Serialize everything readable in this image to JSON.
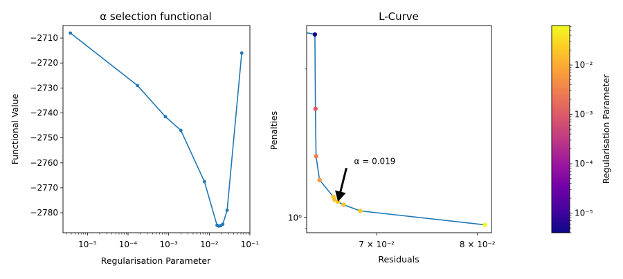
{
  "chart_data": [
    {
      "type": "line",
      "title": "α selection functional",
      "xlabel": "Regularisation Parameter",
      "ylabel": "Functional Value",
      "xscale": "log",
      "xlim": [
        2.5e-06,
        0.1
      ],
      "ylim": [
        -2788,
        -2705
      ],
      "x_ticks": [
        1e-05,
        0.0001,
        0.001,
        0.01,
        0.1
      ],
      "x_tick_labels": [
        "10⁻⁵",
        "10⁻⁴",
        "10⁻³",
        "10⁻²",
        "10⁻¹"
      ],
      "y_ticks": [
        -2710,
        -2720,
        -2730,
        -2740,
        -2750,
        -2760,
        -2770,
        -2780
      ],
      "y_tick_labels": [
        "−2710",
        "−2720",
        "−2730",
        "−2740",
        "−2750",
        "−2760",
        "−2770",
        "−2780"
      ],
      "color": "#1f77b4",
      "x": [
        3.8e-06,
        0.00017,
        0.00083,
        0.002,
        0.0076,
        0.0155,
        0.017,
        0.019,
        0.0215,
        0.0275,
        0.063
      ],
      "y": [
        -2708,
        -2729,
        -2741.5,
        -2747,
        -2767.5,
        -2785,
        -2785.3,
        -2785.2,
        -2784.6,
        -2779,
        -2716
      ]
    },
    {
      "type": "scatter",
      "title": "L-Curve",
      "xlabel": "Residuals",
      "ylabel": "Penalties",
      "xscale": "log",
      "yscale": "log",
      "xlim": [
        0.0638,
        0.0815
      ],
      "ylim": [
        0.93,
        2.45
      ],
      "x_ticks": [
        0.07,
        0.08
      ],
      "x_tick_labels": [
        "7 × 10⁻²",
        "8 × 10⁻²"
      ],
      "y_ticks": [
        1.0
      ],
      "y_tick_labels": [
        "10⁰"
      ],
      "line_color": "#1f77b4",
      "residuals": [
        0.0634,
        0.0645,
        0.06455,
        0.0646,
        0.0649,
        0.0661,
        0.0662,
        0.0665,
        0.067,
        0.0685,
        0.0808
      ],
      "penalties": [
        2.38,
        2.35,
        1.66,
        1.33,
        1.19,
        1.1,
        1.085,
        1.075,
        1.06,
        1.03,
        0.965
      ],
      "point_colors": [
        "#fdca26",
        "#0d0887",
        "#e6596b",
        "#f0804e",
        "#f69a40",
        "#fdc328",
        "#fdc328",
        "#fdc328",
        "#fdc328",
        "#fdca26",
        "#f0f921"
      ],
      "annotation": {
        "text": "α =  0.019",
        "x": 0.0665,
        "y": 1.075,
        "text_x": 0.0675,
        "text_y": 1.3
      }
    }
  ],
  "colorbar": {
    "label": "Regularisation Parameter",
    "scale": "log",
    "colormap": "plasma",
    "range": [
      4e-06,
      0.063
    ],
    "ticks": [
      1e-05,
      0.0001,
      0.001,
      0.01
    ],
    "tick_labels": [
      "10⁻⁵",
      "10⁻⁴",
      "10⁻³",
      "10⁻²"
    ],
    "stops": [
      "#0d0887",
      "#46039f",
      "#7201a8",
      "#9c179e",
      "#bd3786",
      "#d8576b",
      "#ed7953",
      "#fb9f3a",
      "#fdca26",
      "#f0f921"
    ]
  }
}
